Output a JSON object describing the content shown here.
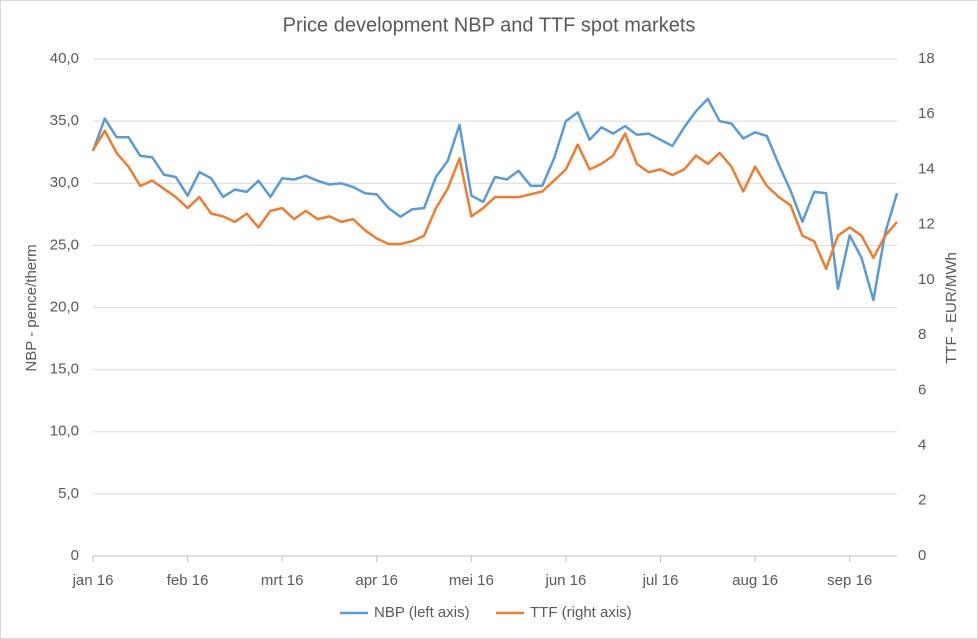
{
  "chart_data": {
    "type": "line",
    "title": "Price development NBP and TTF spot markets",
    "ylabel": "NBP - pence/therm",
    "y2label": "TTF - EUR/MWh",
    "categories": [
      "jan 16",
      null,
      null,
      null,
      null,
      null,
      null,
      null,
      "feb 16",
      null,
      null,
      null,
      null,
      null,
      null,
      null,
      "mrt 16",
      null,
      null,
      null,
      null,
      null,
      null,
      null,
      "apr 16",
      null,
      null,
      null,
      null,
      null,
      null,
      null,
      "mei 16",
      null,
      null,
      null,
      null,
      null,
      null,
      null,
      "jun 16",
      null,
      null,
      null,
      null,
      null,
      null,
      null,
      "jul 16",
      null,
      null,
      null,
      null,
      null,
      null,
      null,
      "aug 16",
      null,
      null,
      null,
      null,
      null,
      null,
      null,
      "sep 16",
      null,
      null,
      null,
      null
    ],
    "series": [
      {
        "name": "NBP (left axis)",
        "color": "#5b9bd5",
        "axis": "y",
        "values": [
          32.6,
          35.2,
          33.7,
          33.7,
          32.2,
          32.1,
          30.7,
          30.5,
          29.0,
          30.9,
          30.4,
          28.9,
          29.5,
          29.3,
          30.2,
          28.9,
          30.4,
          30.3,
          30.6,
          30.2,
          29.9,
          30.0,
          29.7,
          29.2,
          29.1,
          28.0,
          27.3,
          27.9,
          28.0,
          30.5,
          31.8,
          34.7,
          29.0,
          28.5,
          30.5,
          30.3,
          31.0,
          29.8,
          29.8,
          32.0,
          35.0,
          35.7,
          33.5,
          34.5,
          34.0,
          34.6,
          33.9,
          34.0,
          33.5,
          33.0,
          34.5,
          35.8,
          36.8,
          35.0,
          34.8,
          33.6,
          34.1,
          33.8,
          31.5,
          29.4,
          26.9,
          29.3,
          29.2,
          21.5,
          25.8,
          24.0,
          20.6,
          26.0,
          29.2
        ]
      },
      {
        "name": "TTF (right axis)",
        "color": "#ed7d31",
        "axis": "y2",
        "values": [
          14.7,
          15.4,
          14.6,
          14.1,
          13.4,
          13.6,
          13.3,
          13.0,
          12.6,
          13.0,
          12.4,
          12.3,
          12.1,
          12.4,
          11.9,
          12.5,
          12.6,
          12.2,
          12.5,
          12.2,
          12.3,
          12.1,
          12.2,
          11.8,
          11.5,
          11.3,
          11.3,
          11.4,
          11.6,
          12.6,
          13.3,
          14.4,
          12.3,
          12.6,
          13.0,
          13.0,
          13.0,
          13.1,
          13.2,
          13.6,
          14.0,
          14.9,
          14.0,
          14.2,
          14.5,
          15.3,
          14.2,
          13.9,
          14.0,
          13.8,
          14.0,
          14.5,
          14.2,
          14.6,
          14.1,
          13.2,
          14.1,
          13.4,
          13.0,
          12.7,
          11.6,
          11.4,
          10.4,
          11.6,
          11.9,
          11.6,
          10.8,
          11.6,
          12.1
        ]
      }
    ],
    "ylim": [
      0,
      40
    ],
    "yticks": [
      {
        "value": 0,
        "label": "0"
      },
      {
        "value": 5,
        "label": "5,0"
      },
      {
        "value": 10,
        "label": "10,0"
      },
      {
        "value": 15,
        "label": "15,0"
      },
      {
        "value": 20,
        "label": "20,0"
      },
      {
        "value": 25,
        "label": "25,0"
      },
      {
        "value": 30,
        "label": "30,0"
      },
      {
        "value": 35,
        "label": "35,0"
      },
      {
        "value": 40,
        "label": "40,0"
      }
    ],
    "y2lim": [
      0,
      18
    ],
    "y2ticks": [
      0,
      2,
      4,
      6,
      8,
      10,
      12,
      14,
      16,
      18
    ],
    "grid": true,
    "legend": "bottom"
  }
}
